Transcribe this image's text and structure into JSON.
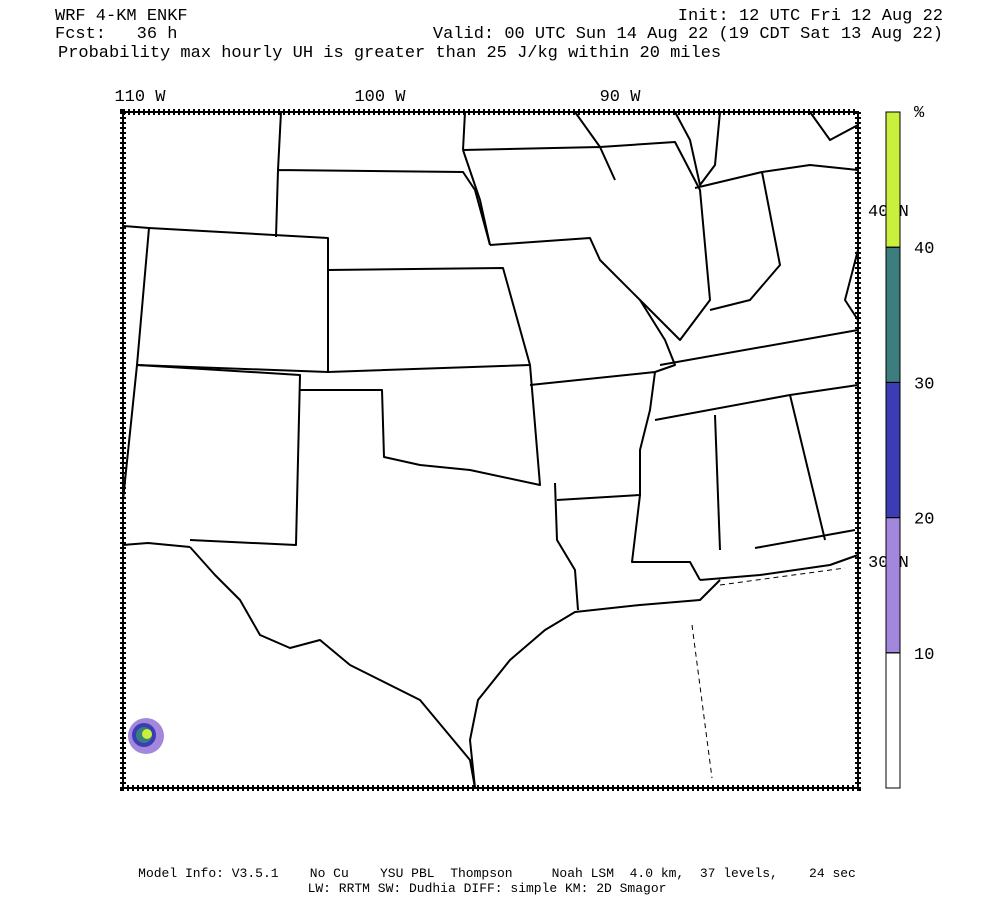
{
  "header": {
    "model": "WRF 4-KM ENKF",
    "init": "Init: 12 UTC Fri 12 Aug 22",
    "forecast": "Fcst:   36 h",
    "valid": "Valid: 00 UTC Sun 14 Aug 22 (19 CDT Sat 13 Aug 22)",
    "field": "Probability max hourly UH is greater than 25 J/kg within 20 miles"
  },
  "map": {
    "longitude_labels": [
      "110 W",
      "100 W",
      "90 W"
    ],
    "latitude_labels": [
      "40 N",
      "30 N"
    ]
  },
  "colorbar": {
    "unit": "%",
    "levels": [
      10,
      20,
      30,
      40
    ],
    "colors": [
      "#ffffff",
      "#a287dc",
      "#3c3cb4",
      "#3c7d7d",
      "#c8f03c"
    ]
  },
  "footer": {
    "line1": "Model Info: V3.5.1    No Cu    YSU PBL  Thompson     Noah LSM  4.0 km,  37 levels,    24 sec",
    "line2": "LW: RRTM SW: Dudhia  DIFF: simple KM: 2D Smagor"
  }
}
